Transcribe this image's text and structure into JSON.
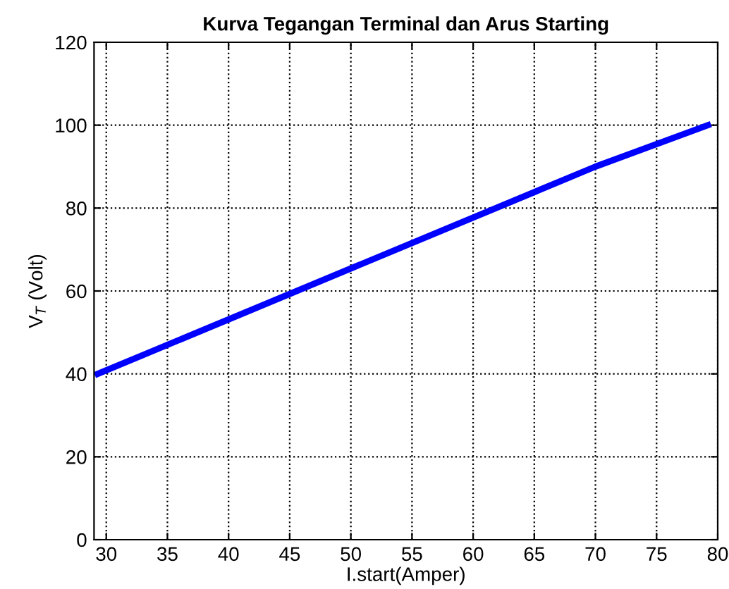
{
  "chart_data": {
    "type": "line",
    "title": "Kurva Tegangan Terminal dan Arus Starting",
    "xlabel": "I.start(Amper)",
    "ylabel": "V$_{T}$ (Volt)",
    "series": [
      {
        "color": "#0000ff",
        "x": [
          29.3,
          70,
          79.2
        ],
        "values": [
          40,
          90,
          100
        ]
      }
    ],
    "xlim": [
      29,
      80
    ],
    "xticks": [
      30,
      35,
      40,
      45,
      50,
      55,
      60,
      65,
      70,
      75,
      80
    ],
    "ylim": [
      0,
      120
    ],
    "yticks": [
      0,
      20,
      40,
      60,
      80,
      100,
      120
    ],
    "grid": true,
    "line_style": "solid",
    "marker": "none"
  }
}
